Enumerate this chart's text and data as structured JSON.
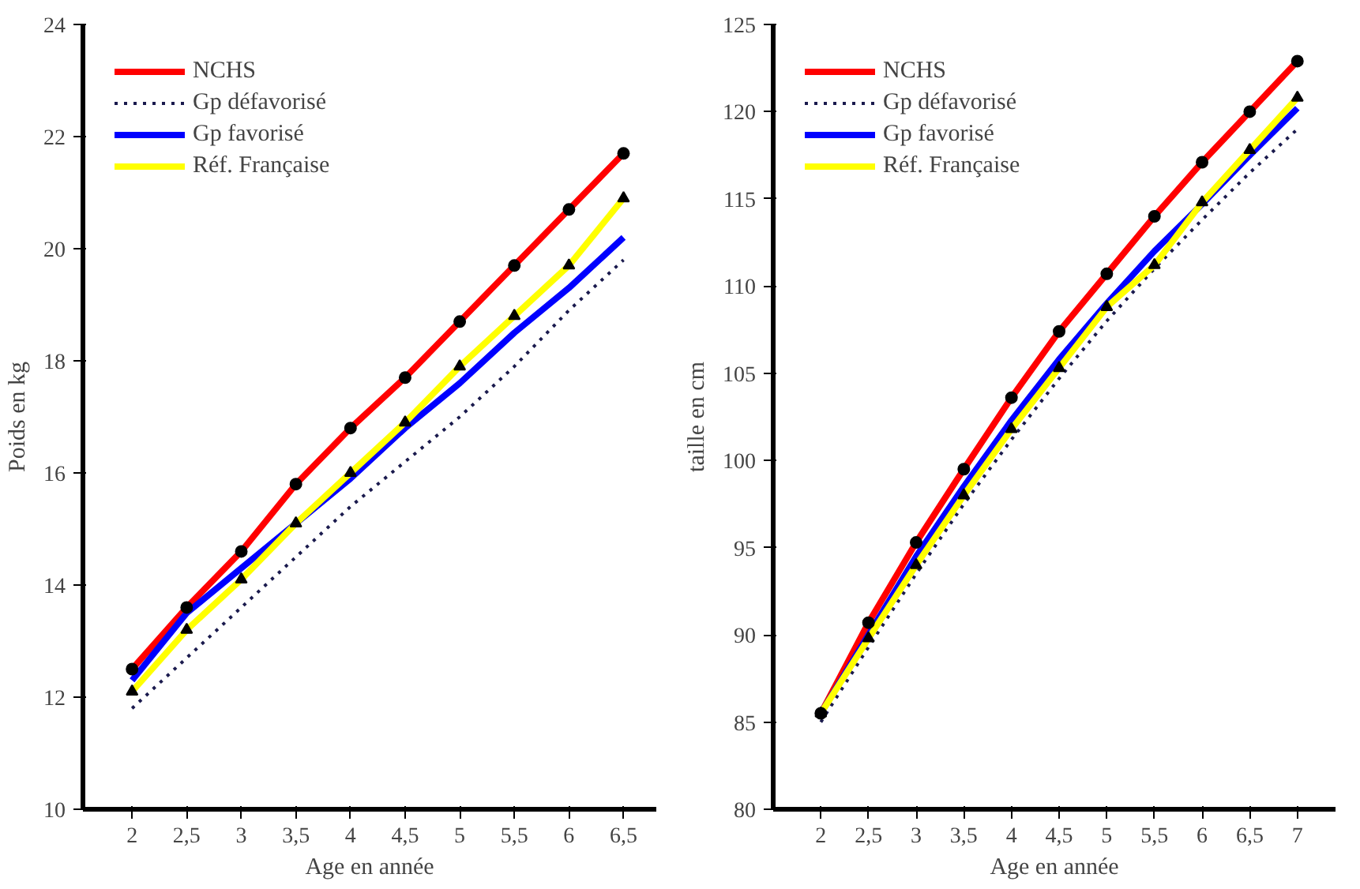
{
  "chart_data": [
    {
      "type": "line",
      "xlabel": "Age en année",
      "ylabel": "Poids en kg",
      "x": [
        2,
        2.5,
        3,
        3.5,
        4,
        4.5,
        5,
        5.5,
        6,
        6.5
      ],
      "xlim": [
        1.55,
        6.8
      ],
      "ylim": [
        10,
        24
      ],
      "yticks": [
        10,
        12,
        14,
        16,
        18,
        20,
        22,
        24
      ],
      "xticks": [
        2,
        {
          "value": 2.5,
          "label": "2,5"
        },
        3,
        {
          "value": 3.5,
          "label": "3,5"
        },
        4,
        {
          "value": 4.5,
          "label": "4,5"
        },
        5,
        {
          "value": 5.5,
          "label": "5,5"
        },
        6,
        {
          "value": 6.5,
          "label": "6,5"
        }
      ],
      "grid": false,
      "legend": "top left",
      "series": [
        {
          "name": "NCHS",
          "color": "#ff0000",
          "line_style": "solid",
          "marker": "circle",
          "values": [
            12.5,
            13.6,
            14.6,
            15.8,
            16.8,
            17.7,
            18.7,
            19.7,
            20.7,
            21.7
          ]
        },
        {
          "name": "Gp défavorisé",
          "color": "#1a1a4d",
          "line_style": "dotted",
          "marker": "none",
          "values": [
            11.8,
            12.7,
            13.6,
            14.5,
            15.4,
            16.2,
            17.0,
            17.9,
            18.9,
            19.8
          ]
        },
        {
          "name": "Gp favorisé",
          "color": "#0000ff",
          "line_style": "solid",
          "marker": "none",
          "values": [
            12.3,
            13.5,
            14.3,
            15.1,
            15.9,
            16.8,
            17.6,
            18.5,
            19.3,
            20.2
          ]
        },
        {
          "name": "Réf. Française",
          "color": "#ffff00",
          "line_style": "solid",
          "marker": "triangle",
          "values": [
            12.1,
            13.2,
            14.1,
            15.1,
            16.0,
            16.9,
            17.9,
            18.8,
            19.7,
            20.9
          ]
        }
      ]
    },
    {
      "type": "line",
      "xlabel": "Age en année",
      "ylabel": "taille en cm",
      "x": [
        2,
        2.5,
        3,
        3.5,
        4,
        4.5,
        5,
        5.5,
        6,
        6.5,
        7
      ],
      "xlim": [
        1.5,
        7.4
      ],
      "ylim": [
        80,
        125
      ],
      "yticks": [
        80,
        85,
        90,
        95,
        100,
        105,
        110,
        115,
        120,
        125
      ],
      "xticks": [
        2,
        {
          "value": 2.5,
          "label": "2,5"
        },
        3,
        {
          "value": 3.5,
          "label": "3,5"
        },
        4,
        {
          "value": 4.5,
          "label": "4,5"
        },
        5,
        {
          "value": 5.5,
          "label": "5,5"
        },
        6,
        {
          "value": 6.5,
          "label": "6,5"
        },
        7
      ],
      "grid": false,
      "legend": "top left",
      "series": [
        {
          "name": "NCHS",
          "color": "#ff0000",
          "line_style": "solid",
          "marker": "circle",
          "values": [
            85.5,
            90.7,
            95.3,
            99.5,
            103.6,
            107.4,
            110.7,
            114.0,
            117.1,
            120.0,
            122.9
          ]
        },
        {
          "name": "Gp défavorisé",
          "color": "#1a1a4d",
          "line_style": "dotted",
          "marker": "none",
          "values": [
            85.0,
            89.3,
            93.5,
            97.5,
            101.2,
            104.7,
            108.0,
            111.0,
            113.8,
            116.5,
            119.0
          ]
        },
        {
          "name": "Gp favorisé",
          "color": "#0000ff",
          "line_style": "solid",
          "marker": "none",
          "values": [
            85.5,
            90.0,
            94.5,
            98.5,
            102.3,
            105.8,
            109.0,
            112.0,
            114.7,
            117.5,
            120.2
          ]
        },
        {
          "name": "Réf. Française",
          "color": "#ffff00",
          "line_style": "solid",
          "marker": "triangle",
          "values": [
            85.5,
            89.8,
            94.0,
            98.0,
            101.8,
            105.3,
            108.8,
            111.2,
            114.8,
            117.8,
            120.8
          ]
        }
      ]
    }
  ]
}
